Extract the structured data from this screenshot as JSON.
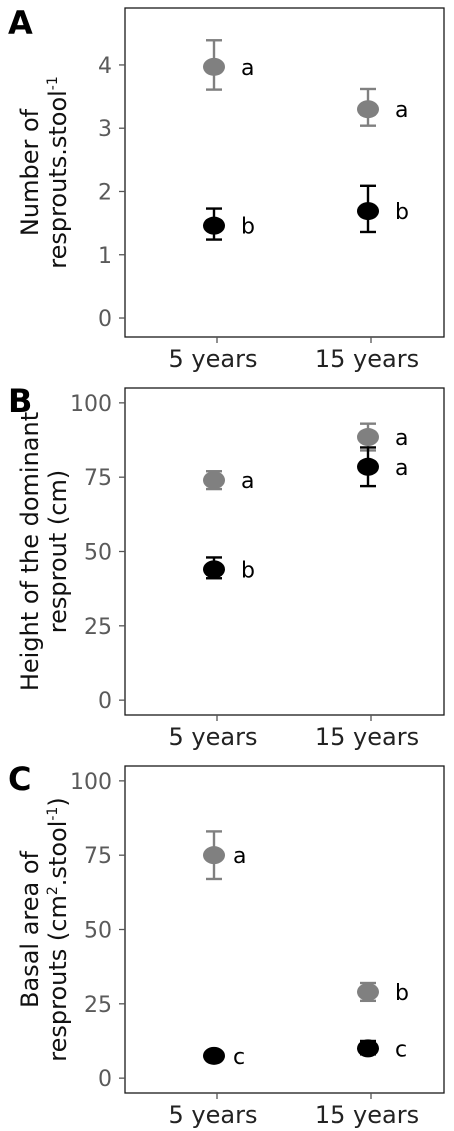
{
  "chart_data": [
    {
      "type": "scatter",
      "panel": "A",
      "ylabel_line1": "Number of",
      "ylabel_line2_text": "resprouts.stool",
      "ylabel_line2_sup": "-1",
      "categories": [
        "5 years",
        "15 years"
      ],
      "ylim": [
        -0.3,
        4.9
      ],
      "yticks": [
        0,
        1,
        2,
        3,
        4
      ],
      "series": [
        {
          "color": "#808080",
          "values": [
            3.97,
            3.3
          ],
          "err_low": [
            3.61,
            3.04
          ],
          "err_high": [
            4.39,
            3.62
          ],
          "labels": [
            "a",
            "a"
          ]
        },
        {
          "color": "#000000",
          "values": [
            1.46,
            1.69
          ],
          "err_low": [
            1.24,
            1.36
          ],
          "err_high": [
            1.73,
            2.09
          ],
          "labels": [
            "b",
            "b"
          ]
        }
      ]
    },
    {
      "type": "scatter",
      "panel": "B",
      "ylabel_line1": "Height of the dominant",
      "ylabel_line2_text": "resprout (cm)",
      "ylabel_line2_sup": "",
      "categories": [
        "5 years",
        "15 years"
      ],
      "ylim": [
        -5,
        105
      ],
      "yticks": [
        0,
        25,
        50,
        75,
        100
      ],
      "series": [
        {
          "color": "#808080",
          "values": [
            74,
            88.5
          ],
          "err_low": [
            71,
            84
          ],
          "err_high": [
            77,
            93
          ],
          "labels": [
            "a",
            "a"
          ]
        },
        {
          "color": "#000000",
          "values": [
            44,
            78.5
          ],
          "err_low": [
            41,
            72
          ],
          "err_high": [
            48,
            85
          ],
          "labels": [
            "b",
            "a"
          ]
        }
      ]
    },
    {
      "type": "scatter",
      "panel": "C",
      "ylabel_line1": "Basal area of",
      "ylabel_line2_text": "resprouts (cm",
      "ylabel_line2_sup": "2",
      "ylabel_line2_mid": ".stool",
      "ylabel_line2_sup2": "-1",
      "ylabel_line2_end": ")",
      "categories": [
        "5 years",
        "15 years"
      ],
      "ylim": [
        -5,
        105
      ],
      "yticks": [
        0,
        25,
        50,
        75,
        100
      ],
      "series": [
        {
          "color": "#808080",
          "values": [
            75,
            29
          ],
          "err_low": [
            67,
            26
          ],
          "err_high": [
            83,
            32
          ],
          "labels": [
            "a",
            "b"
          ]
        },
        {
          "color": "#000000",
          "values": [
            7.5,
            10
          ],
          "err_low": [
            6,
            8
          ],
          "err_high": [
            9,
            12.5
          ],
          "labels": [
            "c",
            "c"
          ]
        }
      ]
    }
  ]
}
